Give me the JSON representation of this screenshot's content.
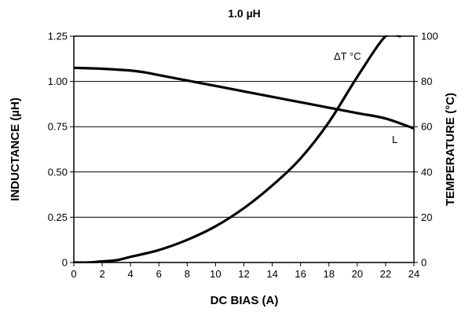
{
  "chart_data": {
    "type": "line",
    "title": "1.0 µH",
    "xlabel": "DC BIAS (A)",
    "ylabel_left": "INDUCTANCE (µH)",
    "ylabel_right": "TEMPERATURE (°C)",
    "xlim": [
      0,
      24
    ],
    "ylim_left": [
      0,
      1.25
    ],
    "ylim_right": [
      0,
      100
    ],
    "x_ticks": [
      "0",
      "2",
      "4",
      "6",
      "8",
      "10",
      "12",
      "14",
      "16",
      "18",
      "20",
      "22",
      "24"
    ],
    "y_ticks_left": [
      "0",
      "0.25",
      "0.50",
      "0.75",
      "1.00",
      "1.25"
    ],
    "y_ticks_right": [
      "0",
      "20",
      "40",
      "60",
      "80",
      "100"
    ],
    "grid": "horizontal",
    "series": [
      {
        "name": "L",
        "axis": "left",
        "x": [
          0,
          2,
          4,
          5,
          6,
          8,
          10,
          12,
          14,
          16,
          18,
          20,
          22,
          24
        ],
        "y": [
          1.075,
          1.07,
          1.06,
          1.05,
          1.035,
          1.005,
          0.975,
          0.945,
          0.915,
          0.885,
          0.855,
          0.825,
          0.795,
          0.74
        ]
      },
      {
        "name": "ΔT °C",
        "axis": "right",
        "x": [
          0,
          1,
          2,
          3,
          4,
          6,
          8,
          10,
          12,
          14,
          16,
          18,
          20,
          22,
          23
        ],
        "y": [
          0,
          0,
          0.5,
          1,
          2.5,
          5.5,
          10,
          16,
          24,
          34,
          46,
          62,
          82,
          100,
          100
        ]
      }
    ],
    "annotations": [
      "ΔT °C",
      "L"
    ]
  }
}
